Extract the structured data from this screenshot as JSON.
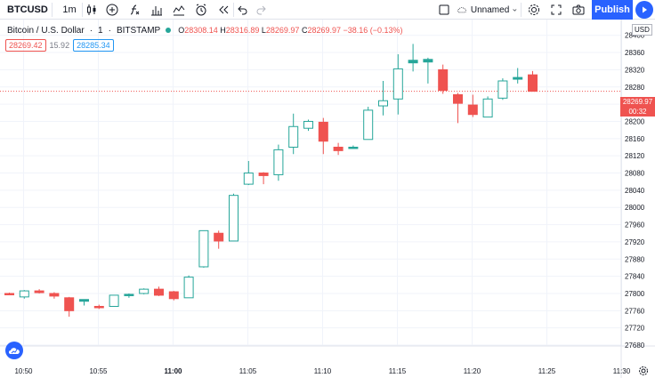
{
  "toolbar": {
    "symbol": "BTCUSD",
    "interval": "1m",
    "layout_name": "Unnamed",
    "publish_label": "Publish",
    "icons": [
      "plus-icon",
      "candles-icon",
      "add-symbol-icon",
      "indicators-icon",
      "bar-chart-icon",
      "line-chart-icon",
      "alert-icon",
      "replay-icon",
      "undo-icon",
      "redo-icon",
      "checkbox-icon",
      "cloud-icon",
      "gear-icon",
      "fullscreen-icon",
      "camera-icon",
      "play-icon"
    ]
  },
  "legend": {
    "title": "Bitcoin / U.S. Dollar",
    "interval": "1",
    "exchange": "BITSTAMP",
    "o_key": "O",
    "o_val": "28308.14",
    "h_key": "H",
    "h_val": "28316.89",
    "l_key": "L",
    "l_val": "28269.97",
    "c_key": "C",
    "c_val": "28269.97",
    "change": "−38.16 (−0.13%)",
    "bid": "28269.42",
    "spread": "15.92",
    "ask": "28285.34"
  },
  "price_axis": {
    "currency": "USD",
    "current_price": "28269.97",
    "countdown": "00:32"
  },
  "colors": {
    "up": "#26a69a",
    "down": "#ef5350",
    "accent": "#2962ff",
    "grid": "#f0f3fa"
  },
  "chart_data": {
    "type": "candlestick",
    "x_ticks": [
      "10:50",
      "10:55",
      "11:00",
      "11:05",
      "11:10",
      "11:15",
      "11:20",
      "11:25",
      "11:30"
    ],
    "y_ticks": [
      28400,
      28360,
      28320,
      28280,
      28240,
      28200,
      28160,
      28120,
      28080,
      28040,
      28000,
      27960,
      27920,
      27880,
      27840,
      27800,
      27760,
      27720,
      27680
    ],
    "ylim": [
      27678,
      28418
    ],
    "grid": true,
    "candles": [
      {
        "t": "10:50",
        "o": 27800,
        "h": 27802,
        "l": 27796,
        "c": 27798
      },
      {
        "t": "10:51",
        "o": 27792,
        "h": 27808,
        "l": 27788,
        "c": 27806
      },
      {
        "t": "10:52",
        "o": 27806,
        "h": 27810,
        "l": 27800,
        "c": 27802
      },
      {
        "t": "10:53",
        "o": 27800,
        "h": 27803,
        "l": 27788,
        "c": 27794
      },
      {
        "t": "10:54",
        "o": 27790,
        "h": 27792,
        "l": 27746,
        "c": 27760
      },
      {
        "t": "10:55",
        "o": 27782,
        "h": 27786,
        "l": 27772,
        "c": 27786
      },
      {
        "t": "10:56",
        "o": 27770,
        "h": 27774,
        "l": 27764,
        "c": 27768
      },
      {
        "t": "10:57",
        "o": 27770,
        "h": 27796,
        "l": 27770,
        "c": 27796
      },
      {
        "t": "10:58",
        "o": 27796,
        "h": 27800,
        "l": 27790,
        "c": 27798
      },
      {
        "t": "10:59",
        "o": 27800,
        "h": 27812,
        "l": 27798,
        "c": 27810
      },
      {
        "t": "11:00",
        "o": 27810,
        "h": 27816,
        "l": 27794,
        "c": 27796
      },
      {
        "t": "11:01",
        "o": 27804,
        "h": 27806,
        "l": 27784,
        "c": 27788
      },
      {
        "t": "11:02",
        "o": 27790,
        "h": 27842,
        "l": 27790,
        "c": 27838
      },
      {
        "t": "11:03",
        "o": 27862,
        "h": 27946,
        "l": 27860,
        "c": 27946
      },
      {
        "t": "11:04",
        "o": 27940,
        "h": 27946,
        "l": 27904,
        "c": 27922
      },
      {
        "t": "11:05",
        "o": 27922,
        "h": 28032,
        "l": 27922,
        "c": 28028
      },
      {
        "t": "11:06",
        "o": 28054,
        "h": 28108,
        "l": 28052,
        "c": 28080
      },
      {
        "t": "11:07",
        "o": 28080,
        "h": 28082,
        "l": 28054,
        "c": 28074
      },
      {
        "t": "11:08",
        "o": 28076,
        "h": 28146,
        "l": 28062,
        "c": 28134
      },
      {
        "t": "11:09",
        "o": 28140,
        "h": 28218,
        "l": 28124,
        "c": 28188
      },
      {
        "t": "11:10",
        "o": 28184,
        "h": 28204,
        "l": 28178,
        "c": 28200
      },
      {
        "t": "11:11",
        "o": 28198,
        "h": 28208,
        "l": 28124,
        "c": 28154
      },
      {
        "t": "11:12",
        "o": 28140,
        "h": 28150,
        "l": 28122,
        "c": 28132
      },
      {
        "t": "11:13",
        "o": 28138,
        "h": 28144,
        "l": 28136,
        "c": 28140
      },
      {
        "t": "11:14",
        "o": 28158,
        "h": 28234,
        "l": 28158,
        "c": 28226
      },
      {
        "t": "11:15",
        "o": 28236,
        "h": 28294,
        "l": 28214,
        "c": 28248
      },
      {
        "t": "11:16",
        "o": 28252,
        "h": 28356,
        "l": 28216,
        "c": 28322
      },
      {
        "t": "11:17",
        "o": 28336,
        "h": 28380,
        "l": 28316,
        "c": 28342
      },
      {
        "t": "11:18",
        "o": 28338,
        "h": 28348,
        "l": 28288,
        "c": 28344
      },
      {
        "t": "11:19",
        "o": 28320,
        "h": 28332,
        "l": 28264,
        "c": 28272
      },
      {
        "t": "11:20",
        "o": 28262,
        "h": 28266,
        "l": 28196,
        "c": 28242
      },
      {
        "t": "11:21",
        "o": 28238,
        "h": 28262,
        "l": 28210,
        "c": 28216
      },
      {
        "t": "11:22",
        "o": 28210,
        "h": 28258,
        "l": 28210,
        "c": 28252
      },
      {
        "t": "11:23",
        "o": 28254,
        "h": 28300,
        "l": 28250,
        "c": 28294
      },
      {
        "t": "11:24",
        "o": 28298,
        "h": 28324,
        "l": 28288,
        "c": 28302
      },
      {
        "t": "11:25",
        "o": 28308.14,
        "h": 28316.89,
        "l": 28269.97,
        "c": 28269.97
      }
    ]
  }
}
